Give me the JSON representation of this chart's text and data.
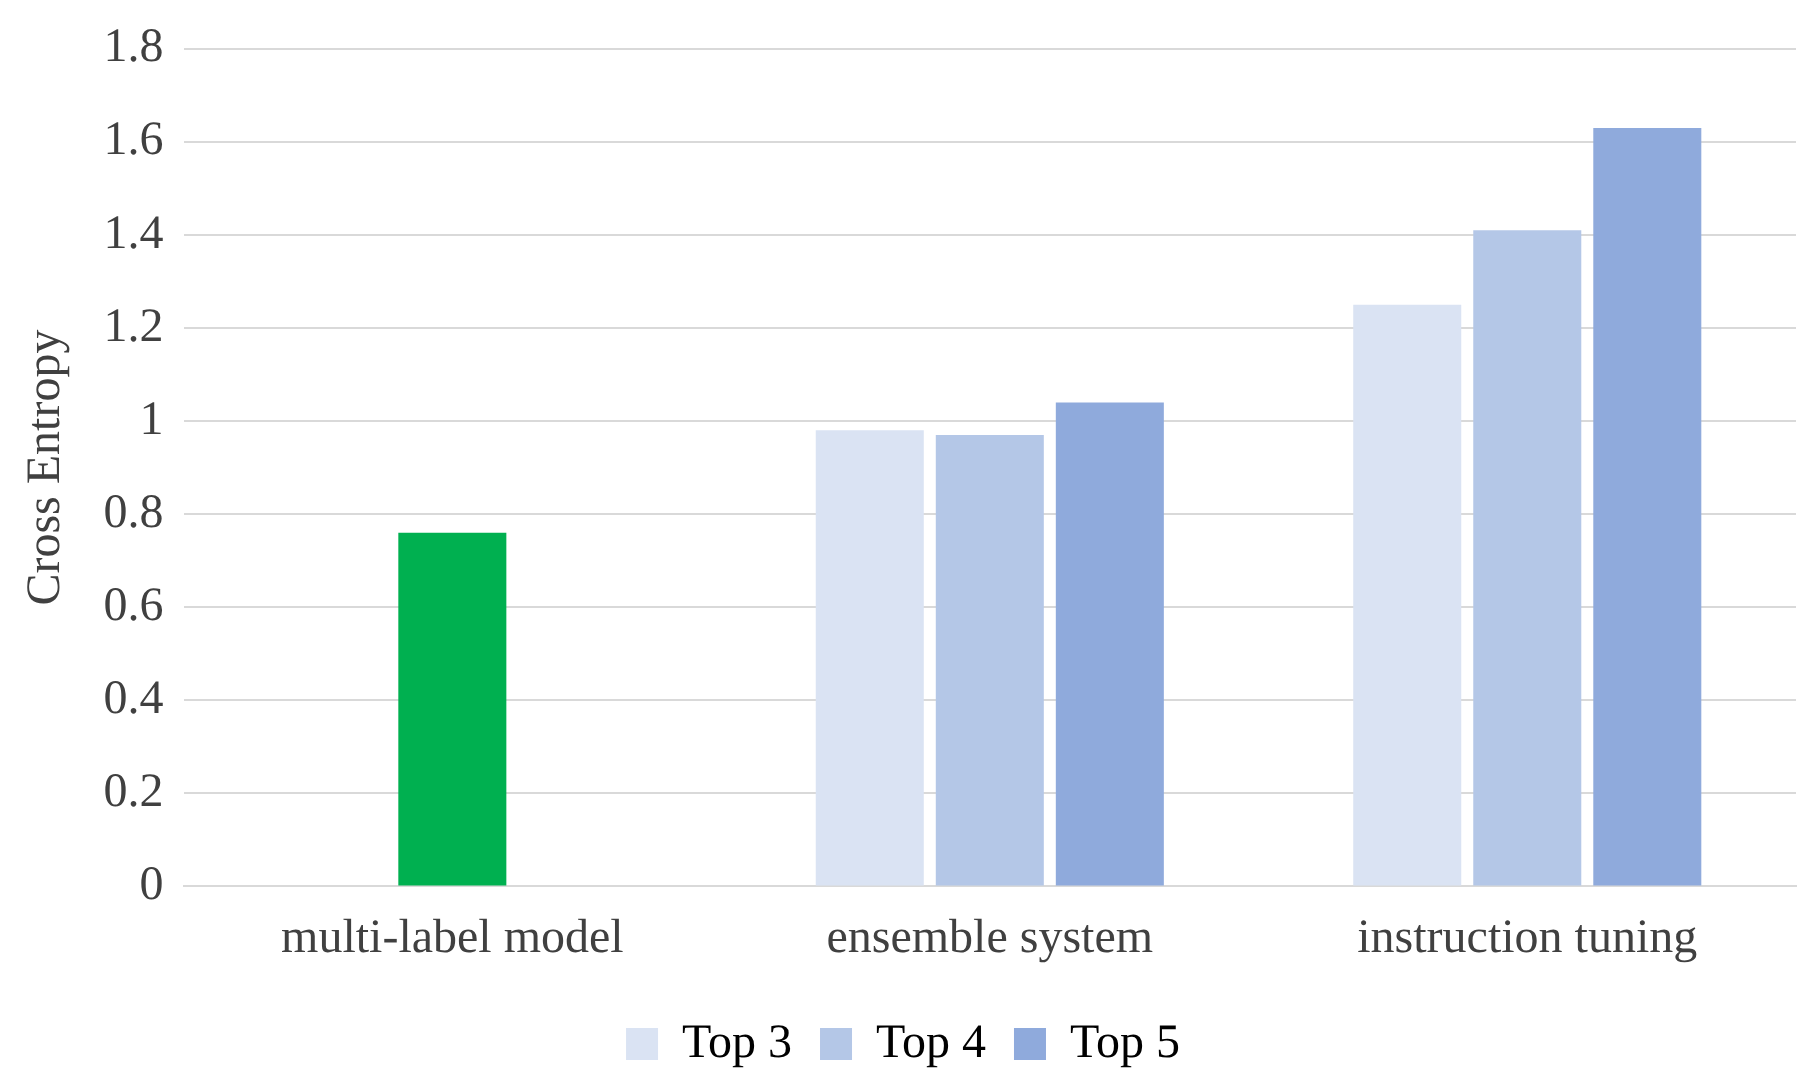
{
  "chart_data": {
    "type": "bar",
    "ylabel": "Cross Entropy",
    "categories": [
      "multi-label model",
      "ensemble system",
      "instruction tuning"
    ],
    "series": [
      {
        "name": "Top 3",
        "color": "#dae3f3",
        "values": [
          null,
          0.98,
          1.25
        ]
      },
      {
        "name": "Top 4",
        "color": "#b4c7e7",
        "colors": [
          "#00b050",
          "#b4c7e7",
          "#b4c7e7"
        ],
        "values": [
          0.76,
          0.97,
          1.41
        ]
      },
      {
        "name": "Top 5",
        "color": "#8faadc",
        "values": [
          null,
          1.04,
          1.63
        ]
      }
    ],
    "ylim": [
      0,
      1.8
    ],
    "yticks": [
      0,
      0.2,
      0.4,
      0.6,
      0.8,
      1,
      1.2,
      1.4,
      1.6,
      1.8
    ],
    "grid": "y",
    "legend": "bottom"
  }
}
